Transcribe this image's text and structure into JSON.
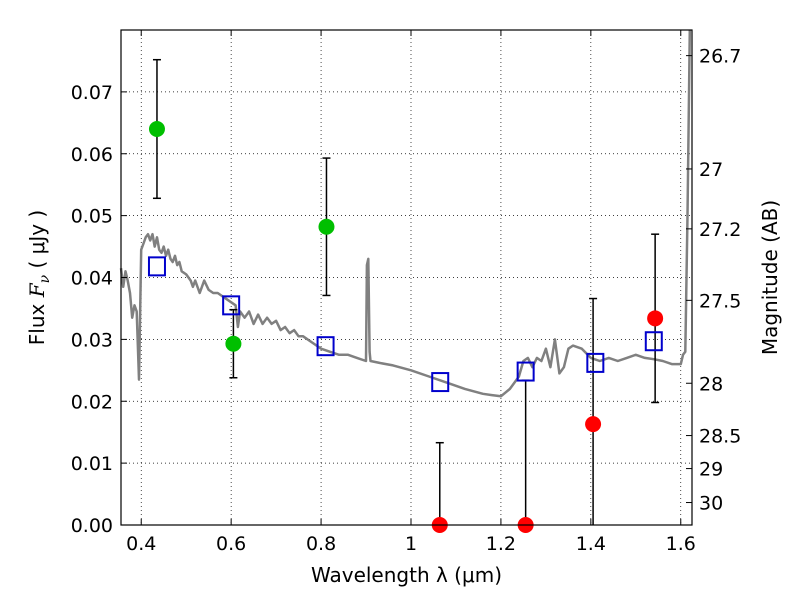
{
  "chart_data": {
    "type": "scatter",
    "xlabel": "Wavelength  λ (μm)",
    "ylabel_prefix": "Flux  ",
    "ylabel_var": "F",
    "ylabel_sub": "ν",
    "ylabel_unit": "  ( μJy )",
    "ylabel_right": "Magnitude (AB)",
    "xlim": [
      0.355,
      1.625
    ],
    "ylim": [
      0.0,
      0.08
    ],
    "grid": true,
    "x_ticks": [
      {
        "value": 0.4,
        "label": "0.4"
      },
      {
        "value": 0.6,
        "label": "0.6"
      },
      {
        "value": 0.8,
        "label": "0.8"
      },
      {
        "value": 1.0,
        "label": "1"
      },
      {
        "value": 1.2,
        "label": "1.2"
      },
      {
        "value": 1.4,
        "label": "1.4"
      },
      {
        "value": 1.6,
        "label": "1.6"
      }
    ],
    "y_ticks": [
      {
        "value": 0.0,
        "label": "0.00"
      },
      {
        "value": 0.01,
        "label": "0.01"
      },
      {
        "value": 0.02,
        "label": "0.02"
      },
      {
        "value": 0.03,
        "label": "0.03"
      },
      {
        "value": 0.04,
        "label": "0.04"
      },
      {
        "value": 0.05,
        "label": "0.05"
      },
      {
        "value": 0.06,
        "label": "0.06"
      },
      {
        "value": 0.07,
        "label": "0.07"
      }
    ],
    "right_ticks": [
      {
        "mag": 26.7,
        "label": "26.7"
      },
      {
        "mag": 27.0,
        "label": "27"
      },
      {
        "mag": 27.2,
        "label": "27.2"
      },
      {
        "mag": 27.5,
        "label": "27.5"
      },
      {
        "mag": 28.0,
        "label": "28"
      },
      {
        "mag": 28.5,
        "label": "28.5"
      },
      {
        "mag": 29.0,
        "label": "29"
      },
      {
        "mag": 30.0,
        "label": "30"
      }
    ],
    "sed_model": {
      "name": "SED model",
      "color": "#808080",
      "x": [
        0.355,
        0.36,
        0.365,
        0.37,
        0.375,
        0.38,
        0.385,
        0.39,
        0.395,
        0.4,
        0.405,
        0.41,
        0.415,
        0.42,
        0.425,
        0.43,
        0.435,
        0.44,
        0.445,
        0.45,
        0.455,
        0.46,
        0.465,
        0.47,
        0.475,
        0.48,
        0.485,
        0.49,
        0.5,
        0.51,
        0.515,
        0.52,
        0.53,
        0.54,
        0.55,
        0.56,
        0.57,
        0.58,
        0.59,
        0.6,
        0.61,
        0.615,
        0.62,
        0.63,
        0.64,
        0.65,
        0.66,
        0.67,
        0.68,
        0.69,
        0.7,
        0.71,
        0.72,
        0.73,
        0.74,
        0.75,
        0.76,
        0.78,
        0.8,
        0.82,
        0.84,
        0.86,
        0.88,
        0.9,
        0.902,
        0.905,
        0.908,
        0.91,
        0.93,
        0.96,
        1.0,
        1.04,
        1.08,
        1.12,
        1.16,
        1.18,
        1.2,
        1.22,
        1.24,
        1.25,
        1.26,
        1.27,
        1.28,
        1.29,
        1.3,
        1.31,
        1.32,
        1.33,
        1.34,
        1.35,
        1.36,
        1.38,
        1.4,
        1.42,
        1.44,
        1.46,
        1.48,
        1.5,
        1.52,
        1.54,
        1.56,
        1.58,
        1.6,
        1.605,
        1.61,
        1.615,
        1.62
      ],
      "y": [
        0.0415,
        0.0385,
        0.041,
        0.0395,
        0.0375,
        0.0335,
        0.0355,
        0.0345,
        0.0235,
        0.0445,
        0.0455,
        0.0465,
        0.047,
        0.046,
        0.047,
        0.045,
        0.0465,
        0.0445,
        0.044,
        0.045,
        0.0435,
        0.0445,
        0.043,
        0.0425,
        0.0435,
        0.042,
        0.0425,
        0.041,
        0.0405,
        0.0395,
        0.0385,
        0.0395,
        0.0375,
        0.0395,
        0.038,
        0.0375,
        0.0375,
        0.037,
        0.0365,
        0.036,
        0.0355,
        0.032,
        0.0345,
        0.0335,
        0.0345,
        0.0325,
        0.034,
        0.0325,
        0.0335,
        0.0325,
        0.033,
        0.0315,
        0.032,
        0.031,
        0.0315,
        0.0305,
        0.0305,
        0.0295,
        0.0285,
        0.028,
        0.0275,
        0.0275,
        0.027,
        0.0265,
        0.042,
        0.043,
        0.028,
        0.0265,
        0.0262,
        0.0258,
        0.025,
        0.024,
        0.023,
        0.022,
        0.0212,
        0.021,
        0.0208,
        0.022,
        0.024,
        0.0265,
        0.027,
        0.0255,
        0.027,
        0.0265,
        0.0285,
        0.0255,
        0.03,
        0.0245,
        0.0255,
        0.0285,
        0.029,
        0.0285,
        0.027,
        0.0265,
        0.027,
        0.0265,
        0.027,
        0.0275,
        0.027,
        0.0268,
        0.0265,
        0.026,
        0.026,
        0.0275,
        0.028,
        0.05,
        0.08
      ]
    },
    "green_points": {
      "name": "observed (green)",
      "color": "#00bf00",
      "x": [
        0.435,
        0.605,
        0.812
      ],
      "y": [
        0.064,
        0.0293,
        0.0482
      ],
      "yerr": [
        0.0112,
        0.0055,
        0.0111
      ]
    },
    "red_points": {
      "name": "observed (red)",
      "color": "#ff0000",
      "x": [
        1.064,
        1.255,
        1.405,
        1.543
      ],
      "y": [
        0.0,
        0.0,
        0.0163,
        0.0334
      ],
      "yerr": [
        0.0133,
        0.0234,
        0.0203,
        0.0136
      ]
    },
    "model_points": {
      "name": "model photometry",
      "color": "#0000cc",
      "x": [
        0.435,
        0.6,
        0.81,
        1.065,
        1.255,
        1.41,
        1.54
      ],
      "y": [
        0.0418,
        0.0355,
        0.0289,
        0.0231,
        0.0248,
        0.0262,
        0.0297
      ]
    }
  }
}
